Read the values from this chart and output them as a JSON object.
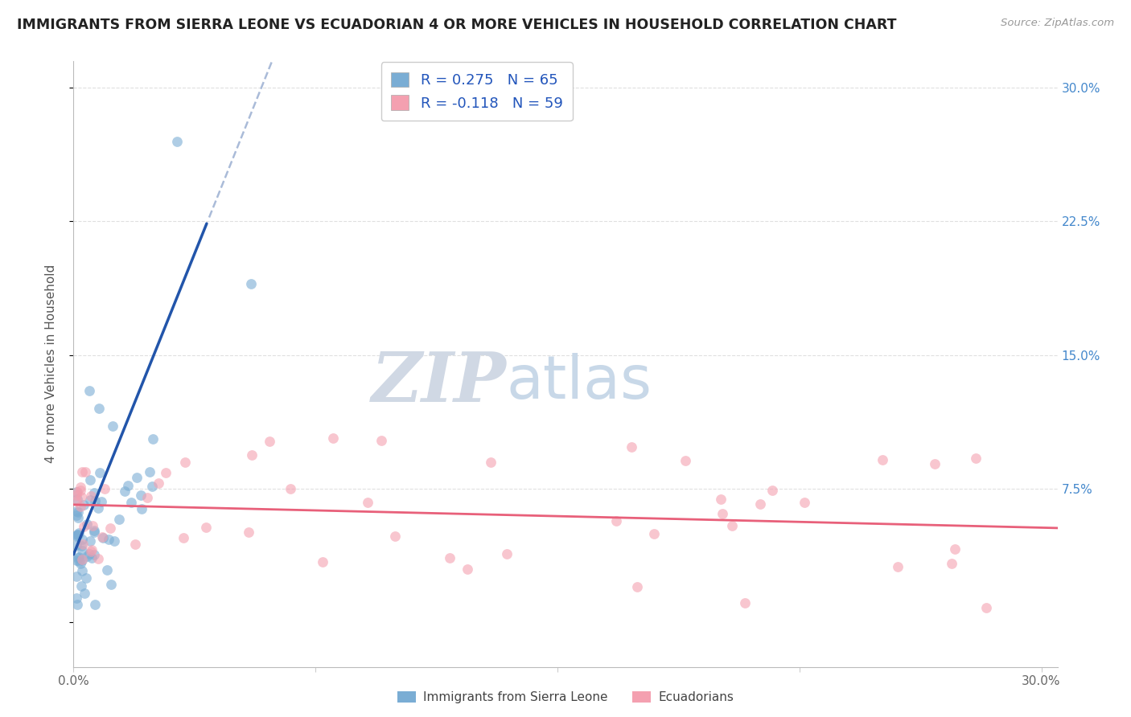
{
  "title": "IMMIGRANTS FROM SIERRA LEONE VS ECUADORIAN 4 OR MORE VEHICLES IN HOUSEHOLD CORRELATION CHART",
  "source": "Source: ZipAtlas.com",
  "ylabel": "4 or more Vehicles in Household",
  "xlim": [
    0.0,
    0.305
  ],
  "ylim": [
    -0.025,
    0.315
  ],
  "blue_R": 0.275,
  "blue_N": 65,
  "pink_R": -0.118,
  "pink_N": 59,
  "blue_color": "#7AADD4",
  "pink_color": "#F4A0B0",
  "blue_line_color": "#2255AA",
  "pink_line_color": "#E8607A",
  "dashed_line_color": "#AABBD8",
  "watermark_zip": "ZIP",
  "watermark_atlas": "atlas",
  "legend_label_blue": "Immigrants from Sierra Leone",
  "legend_label_pink": "Ecuadorians",
  "grid_color": "#E0E0E0",
  "ytick_color": "#4488CC",
  "xtick_color": "#666666"
}
